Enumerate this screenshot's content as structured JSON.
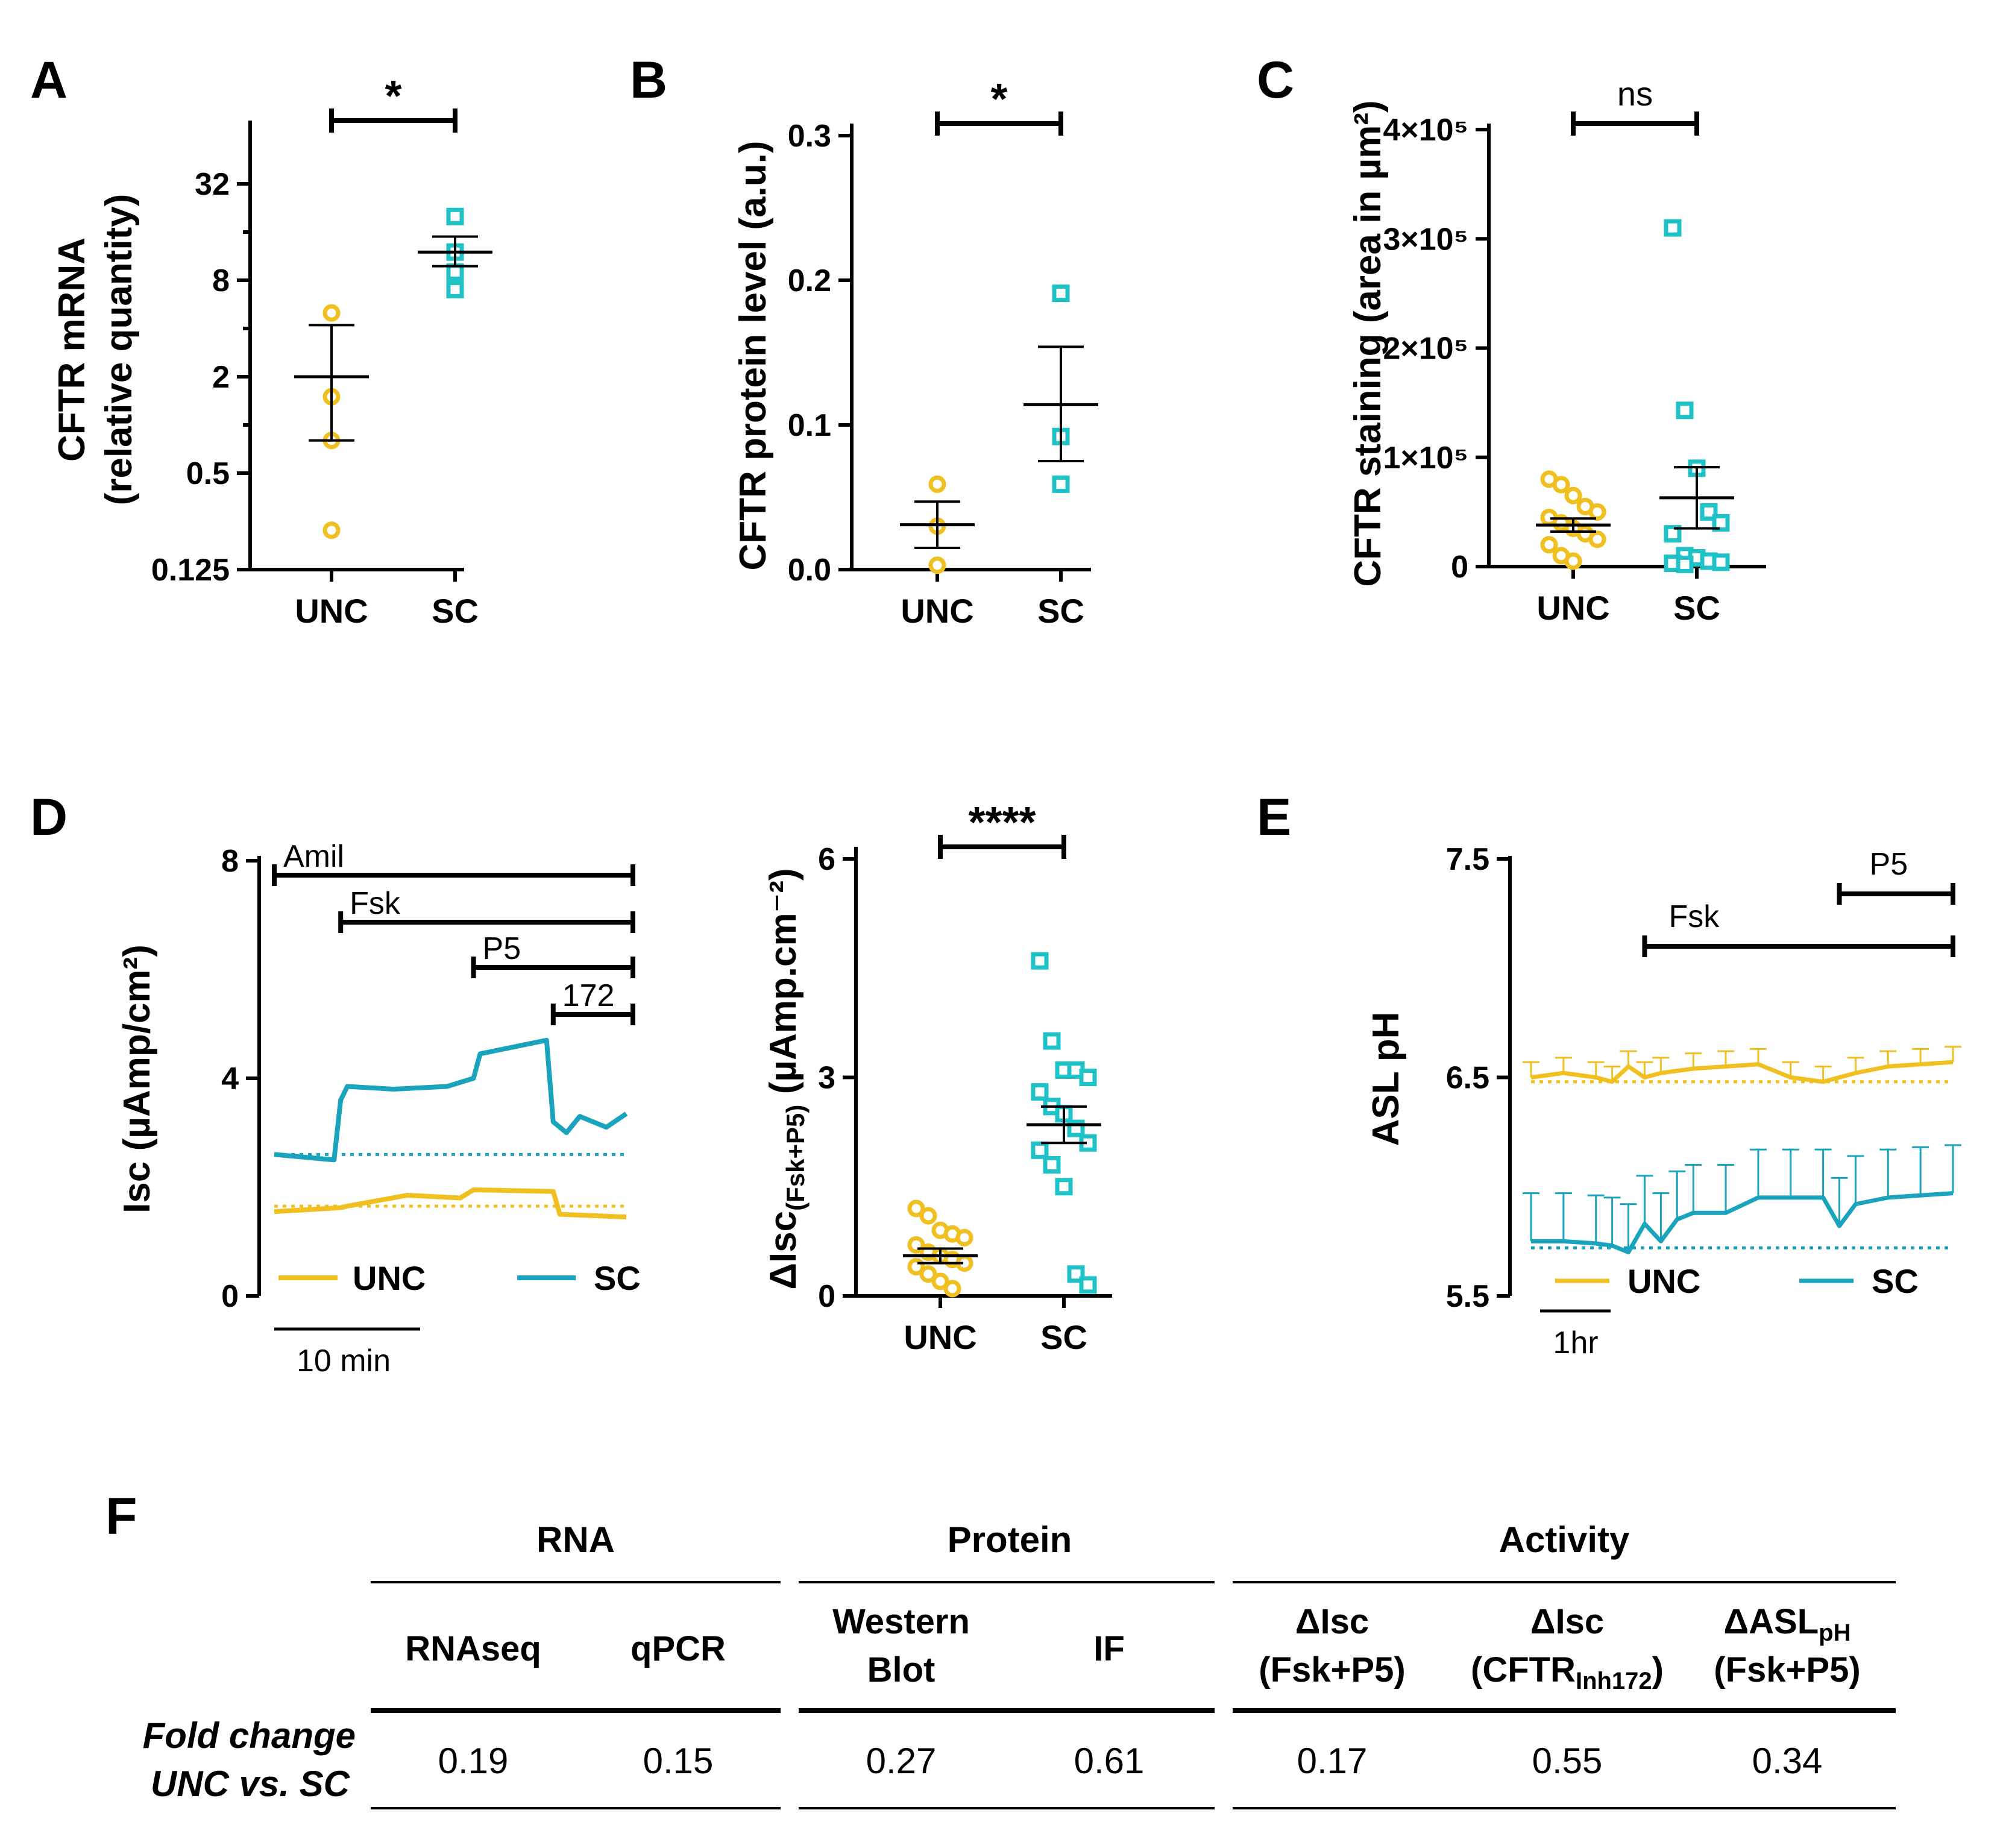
{
  "colors": {
    "unc": "#F0C020",
    "sc": "#1AA3BC",
    "sc_marker": "#1FC2C6"
  },
  "panel_labels": [
    "A",
    "B",
    "C",
    "D",
    "E",
    "F"
  ],
  "chart_data": [
    {
      "id": "A",
      "type": "scatter",
      "yscale": "log2",
      "ylabel_lines": [
        "CFTR mRNA",
        "(relative quantity)"
      ],
      "yticks": [
        0.125,
        0.5,
        2,
        8,
        32
      ],
      "ytick_labels": [
        "0.125",
        "0.5",
        "2",
        "8",
        "32"
      ],
      "ylim": [
        0.125,
        80
      ],
      "categories": [
        "UNC",
        "SC"
      ],
      "points": [
        [
          5.0,
          1.5,
          0.8,
          0.22
        ],
        [
          20,
          12,
          9,
          7
        ]
      ],
      "mean": [
        2.0,
        12
      ],
      "sem_low": [
        0.8,
        9.8
      ],
      "sem_high": [
        4.2,
        15
      ],
      "significance": "*"
    },
    {
      "id": "B",
      "type": "scatter",
      "yscale": "linear",
      "ylabel_lines": [
        "CFTR protein level (a.u.)"
      ],
      "yticks": [
        0,
        0.1,
        0.2,
        0.3
      ],
      "ytick_labels": [
        "0.0",
        "0.1",
        "0.2",
        "0.3"
      ],
      "ylim": [
        0,
        0.3
      ],
      "categories": [
        "UNC",
        "SC"
      ],
      "points": [
        [
          0.059,
          0.03,
          0.003
        ],
        [
          0.191,
          0.092,
          0.059
        ]
      ],
      "mean": [
        0.031,
        0.114
      ],
      "sem_low": [
        0.015,
        0.075
      ],
      "sem_high": [
        0.047,
        0.154
      ],
      "significance": "*"
    },
    {
      "id": "C",
      "type": "scatter",
      "yscale": "linear",
      "ylabel_lines": [
        "CFTR staining (area in µm²)"
      ],
      "yticks": [
        0,
        100000,
        200000,
        300000,
        400000
      ],
      "ytick_labels": [
        "0",
        "1×10⁵",
        "2×10⁵",
        "3×10⁵",
        "4×10⁵"
      ],
      "ylim": [
        0,
        400000
      ],
      "categories": [
        "UNC",
        "SC"
      ],
      "points": [
        [
          80000,
          75000,
          65000,
          55000,
          50000,
          45000,
          40000,
          35000,
          30000,
          25000,
          20000,
          10000,
          5000
        ],
        [
          310000,
          143000,
          90000,
          50000,
          40000,
          30000,
          10000,
          8000,
          5000,
          4000,
          3000,
          2000
        ]
      ],
      "mean": [
        38000,
        63000
      ],
      "sem_low": [
        32000,
        35000
      ],
      "sem_high": [
        44000,
        91000
      ],
      "significance": "ns"
    },
    {
      "id": "D-trace",
      "type": "line",
      "ylabel": "Isc (µAmp/cm²)",
      "yticks": [
        0,
        4,
        8
      ],
      "ytick_labels": [
        "0",
        "4",
        "8"
      ],
      "ylim": [
        0,
        8
      ],
      "xlim_min": [
        0,
        27
      ],
      "series": [
        {
          "name": "UNC",
          "x": [
            0,
            5,
            5.5,
            10,
            14,
            15,
            21,
            21.5,
            26.5
          ],
          "y": [
            1.55,
            1.62,
            1.65,
            1.85,
            1.8,
            1.95,
            1.92,
            1.5,
            1.45
          ],
          "baseline": 1.65
        },
        {
          "name": "SC",
          "x": [
            0,
            4.5,
            5.0,
            5.5,
            9,
            13,
            15,
            15.5,
            20.5,
            21,
            22,
            23,
            24,
            25,
            26.5
          ],
          "y": [
            2.6,
            2.5,
            3.6,
            3.85,
            3.8,
            3.85,
            4.0,
            4.45,
            4.7,
            3.2,
            3.0,
            3.3,
            3.2,
            3.1,
            3.35
          ],
          "baseline": 2.6
        }
      ],
      "drugs": [
        {
          "label": "Amil",
          "start": 0,
          "end": 27
        },
        {
          "label": "Fsk",
          "start": 5,
          "end": 27
        },
        {
          "label": "P5",
          "start": 15,
          "end": 27
        },
        {
          "label": "172",
          "start": 21,
          "end": 27
        }
      ],
      "scalebar_label": "10 min",
      "legend": [
        "UNC",
        "SC"
      ]
    },
    {
      "id": "D-dot",
      "type": "scatter",
      "yscale": "linear",
      "ylabel_main": "ΔIsc",
      "ylabel_sub": "(Fsk+P5)",
      "ylabel_unit": " (µAmp.cm⁻²)",
      "yticks": [
        0,
        3,
        6
      ],
      "ytick_labels": [
        "0",
        "3",
        "6"
      ],
      "ylim": [
        0,
        6
      ],
      "categories": [
        "UNC",
        "SC"
      ],
      "points": [
        [
          1.2,
          1.1,
          0.9,
          0.85,
          0.8,
          0.7,
          0.6,
          0.55,
          0.5,
          0.45,
          0.4,
          0.3,
          0.2,
          0.1
        ],
        [
          4.6,
          3.5,
          3.1,
          3.1,
          3.0,
          2.8,
          2.6,
          2.5,
          2.3,
          2.1,
          2.0,
          1.8,
          1.5,
          0.3,
          0.15
        ]
      ],
      "mean": [
        0.55,
        2.35
      ],
      "sem_low": [
        0.45,
        2.1
      ],
      "sem_high": [
        0.65,
        2.6
      ],
      "significance": "****"
    },
    {
      "id": "E",
      "type": "line",
      "ylabel": "ASL pH",
      "yticks": [
        5.5,
        6.5,
        7.5
      ],
      "ytick_labels": [
        "5.5",
        "6.5",
        "7.5"
      ],
      "ylim": [
        5.5,
        7.5
      ],
      "xlim_hr": [
        0,
        13
      ],
      "series": [
        {
          "name": "UNC",
          "x": [
            0,
            1,
            2,
            2.5,
            3,
            3.5,
            4,
            5,
            6,
            7,
            8,
            9,
            10,
            11,
            12,
            13
          ],
          "y": [
            6.5,
            6.52,
            6.5,
            6.48,
            6.55,
            6.5,
            6.52,
            6.54,
            6.55,
            6.56,
            6.5,
            6.48,
            6.52,
            6.55,
            6.56,
            6.57
          ],
          "err": 0.07,
          "baseline": 6.48
        },
        {
          "name": "SC",
          "x": [
            0,
            1,
            2,
            2.5,
            3,
            3.5,
            4,
            4.5,
            5,
            6,
            7,
            8,
            9,
            9.5,
            10,
            11,
            12,
            13
          ],
          "y": [
            5.75,
            5.75,
            5.74,
            5.73,
            5.7,
            5.83,
            5.75,
            5.85,
            5.88,
            5.88,
            5.95,
            5.95,
            5.95,
            5.82,
            5.92,
            5.95,
            5.96,
            5.97
          ],
          "err": 0.22,
          "baseline": 5.72
        }
      ],
      "drugs": [
        {
          "label": "Fsk",
          "start": 3.5,
          "end": 13
        },
        {
          "label": "P5",
          "start": 9.5,
          "end": 13
        }
      ],
      "scalebar_label": "1hr",
      "legend": [
        "UNC",
        "SC"
      ]
    }
  ],
  "table": {
    "groups": [
      "RNA",
      "Protein",
      "Activity"
    ],
    "columns": [
      {
        "line1": "RNAseq",
        "line2": "",
        "value": "0.19"
      },
      {
        "line1": "qPCR",
        "line2": "",
        "value": "0.15"
      },
      {
        "line1": "Western",
        "line2": "Blot",
        "value": "0.27"
      },
      {
        "line1": "IF",
        "line2": "",
        "value": "0.61"
      },
      {
        "line1": "ΔIsc",
        "line2": "(Fsk+P5)",
        "value": "0.17"
      },
      {
        "line1": "ΔIsc",
        "line2": "(CFTR",
        "line2_sub": "Inh172",
        "line2_end": ")",
        "value": "0.55"
      },
      {
        "line1": "ΔASL",
        "line1_sub": "pH",
        "line2": "(Fsk+P5)",
        "value": "0.34"
      }
    ],
    "row_label_lines": [
      "Fold change",
      "UNC vs. SC"
    ]
  }
}
